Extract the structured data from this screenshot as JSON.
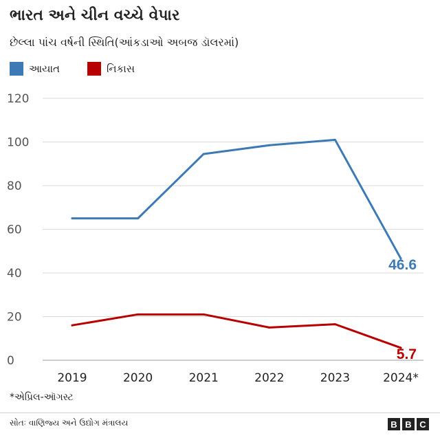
{
  "title": "ભારત અને ચીન વચ્ચે વેપાર",
  "subtitle": "છેલ્લા પાંચ વર્ષની સ્થિતિ(આંકડાઓ અબજ ડૉલરમાં)",
  "footnote": "*એપ્રિલ-ઑગસ્ટ",
  "source": "સોતઃ વાણિજ્ય અને ઉદ્યોગ મંત્રાલય",
  "logo": [
    "B",
    "B",
    "C"
  ],
  "colors": {
    "imports": "#3d7ab5",
    "exports": "#b80000",
    "grid": "#d9d9d9",
    "text": "#222222"
  },
  "chart_data": {
    "type": "line",
    "categories": [
      "2019",
      "2020",
      "2021",
      "2022",
      "2023",
      "2024*"
    ],
    "series": [
      {
        "name": "આયાત",
        "values": [
          65,
          65,
          94.5,
          98.5,
          101,
          46.6
        ],
        "end_label": "46.6"
      },
      {
        "name": "નિકાસ",
        "values": [
          16,
          21,
          21,
          15,
          16.5,
          5.7
        ],
        "end_label": "5.7"
      }
    ],
    "y_ticks": [
      0,
      20,
      40,
      60,
      80,
      100,
      120
    ],
    "ylim": [
      0,
      120
    ],
    "grid": true,
    "legend_position": "top-left"
  }
}
